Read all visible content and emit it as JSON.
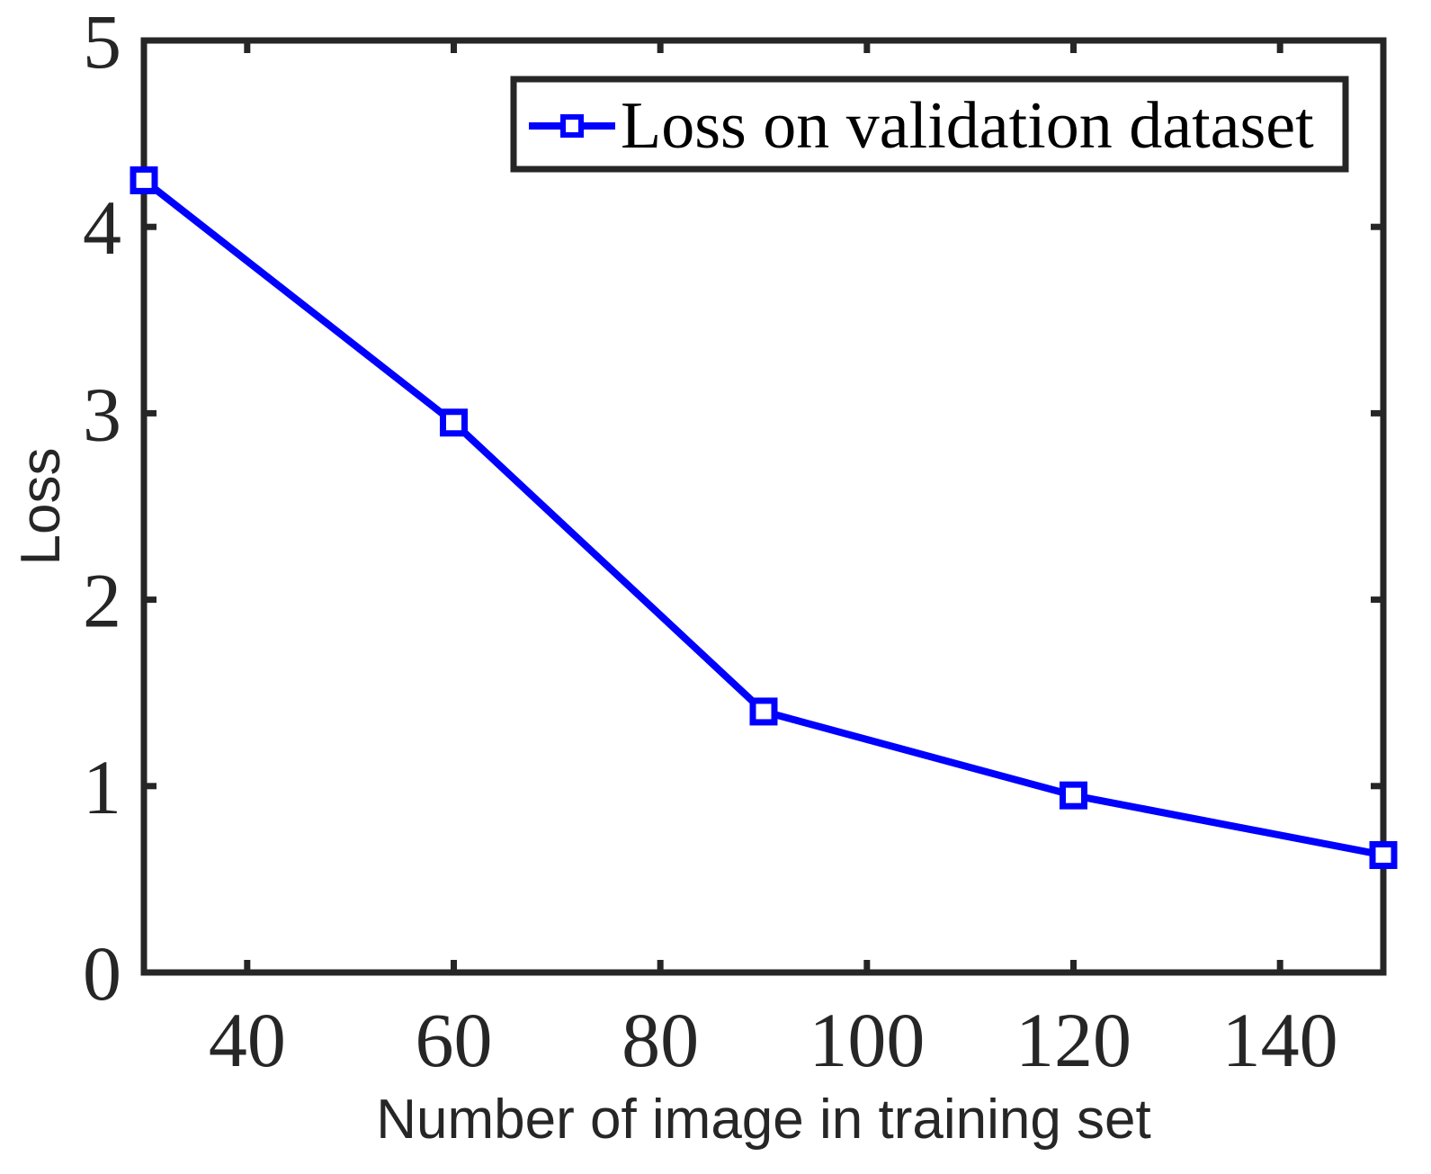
{
  "chart_data": {
    "type": "line",
    "title": "",
    "xlabel": "Number of image in training set",
    "ylabel": "Loss",
    "xlim": [
      30,
      150
    ],
    "ylim": [
      0,
      5
    ],
    "xticks": [
      40,
      60,
      80,
      100,
      120,
      140
    ],
    "yticks": [
      0,
      1,
      2,
      3,
      4,
      5
    ],
    "grid": false,
    "legend_position": "top-right",
    "series": [
      {
        "name": "Loss on validation dataset",
        "color": "#0000ff",
        "marker": "square",
        "x": [
          30,
          60,
          90,
          120,
          150
        ],
        "y": [
          4.25,
          2.95,
          1.4,
          0.95,
          0.63
        ]
      }
    ]
  }
}
